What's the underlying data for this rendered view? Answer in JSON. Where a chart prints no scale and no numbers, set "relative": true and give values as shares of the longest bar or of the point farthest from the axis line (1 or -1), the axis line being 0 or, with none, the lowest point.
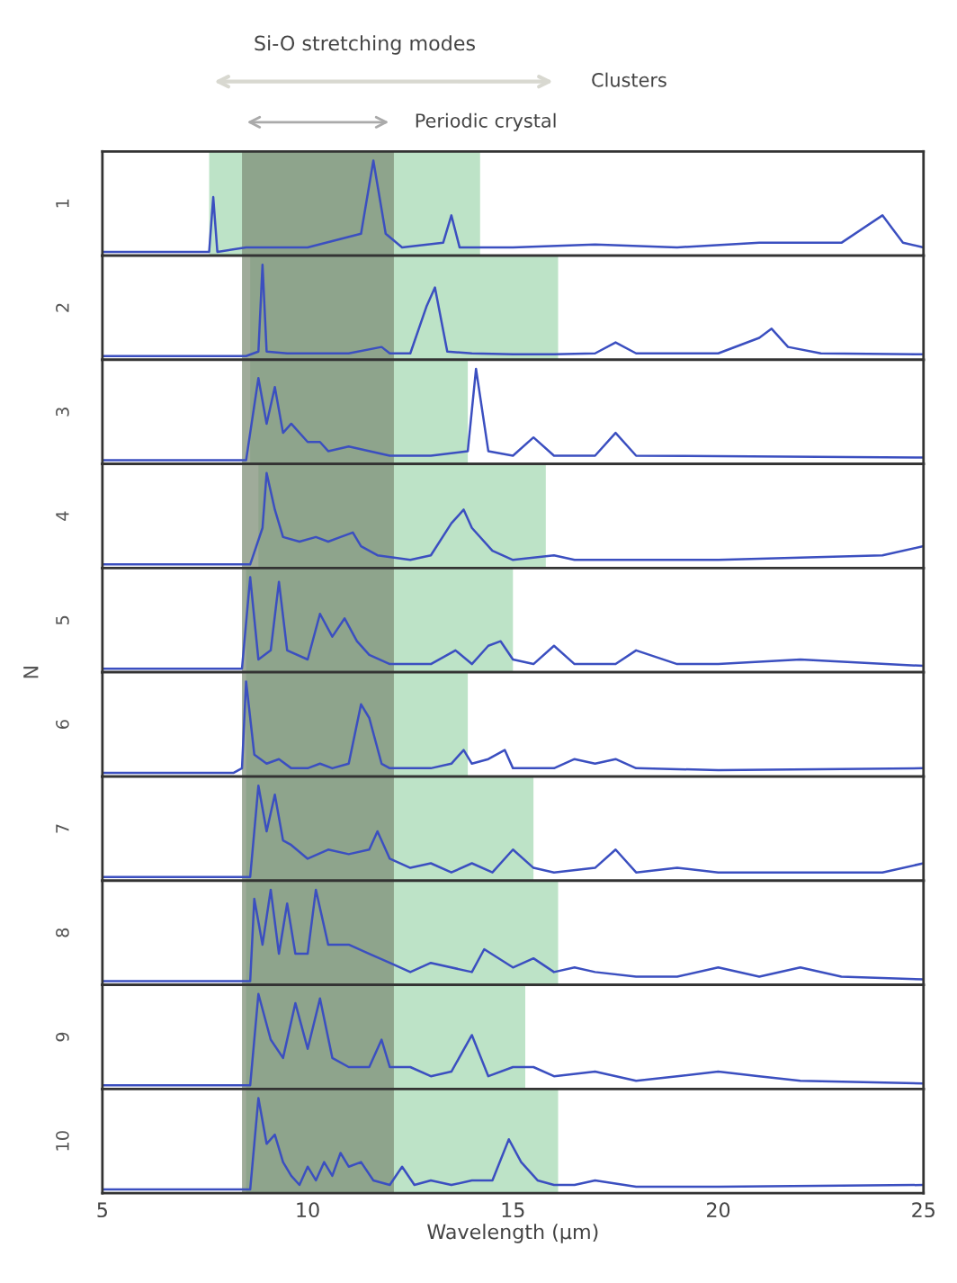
{
  "chart_data": [
    {
      "type": "line",
      "relative": true,
      "ylabel": "1",
      "xlim": [
        5,
        25
      ],
      "xticks": [
        5,
        10,
        15,
        20,
        25
      ],
      "tick_labels": false,
      "annotations": [
        "Si-O stretching modes",
        "Clusters",
        "Periodic crystal"
      ],
      "bands": [
        {
          "axis": "x",
          "from": 7.6,
          "to": 14.2,
          "color": "#a7d9b4"
        },
        {
          "axis": "x",
          "from": 8.4,
          "to": 12.1,
          "color": "#7f8f78"
        }
      ],
      "series": [
        {
          "color": "#3b4fc0",
          "x": [
            5,
            7.6,
            7.7,
            7.8,
            8.5,
            10,
            11.3,
            11.6,
            11.9,
            12.3,
            13.3,
            13.5,
            13.7,
            15,
            17,
            19,
            21,
            23,
            24,
            24.5,
            25
          ],
          "values": [
            0,
            0,
            0.6,
            0,
            0.05,
            0.05,
            0.2,
            1,
            0.2,
            0.05,
            0.1,
            0.4,
            0.05,
            0.05,
            0.08,
            0.05,
            0.1,
            0.1,
            0.4,
            0.1,
            0.05
          ]
        }
      ]
    },
    {
      "type": "line",
      "relative": true,
      "ylabel": "2",
      "xlim": [
        5,
        25
      ],
      "xticks": [
        5,
        10,
        15,
        20,
        25
      ],
      "tick_labels": false,
      "bands": [
        {
          "axis": "x",
          "from": 8.6,
          "to": 16.1,
          "color": "#a7d9b4"
        },
        {
          "axis": "x",
          "from": 8.4,
          "to": 12.1,
          "color": "#7f8f78"
        }
      ],
      "series": [
        {
          "color": "#3b4fc0",
          "x": [
            5,
            8.5,
            8.8,
            8.9,
            9.0,
            9.5,
            11,
            11.8,
            12,
            12.5,
            12.9,
            13.1,
            13.4,
            14,
            15,
            16,
            17,
            17.5,
            18,
            20,
            21,
            21.3,
            21.7,
            22.5,
            25
          ],
          "values": [
            0,
            0,
            0.05,
            1,
            0.05,
            0.03,
            0.03,
            0.1,
            0.03,
            0.03,
            0.55,
            0.75,
            0.05,
            0.03,
            0.02,
            0.02,
            0.03,
            0.15,
            0.03,
            0.03,
            0.2,
            0.3,
            0.1,
            0.03,
            0.02
          ]
        }
      ]
    },
    {
      "type": "line",
      "relative": true,
      "ylabel": "3",
      "xlim": [
        5,
        25
      ],
      "xticks": [
        5,
        10,
        15,
        20,
        25
      ],
      "tick_labels": false,
      "bands": [
        {
          "axis": "x",
          "from": 8.6,
          "to": 13.9,
          "color": "#a7d9b4"
        },
        {
          "axis": "x",
          "from": 8.4,
          "to": 12.1,
          "color": "#7f8f78"
        }
      ],
      "series": [
        {
          "color": "#3b4fc0",
          "x": [
            5,
            8.5,
            8.8,
            9.0,
            9.2,
            9.4,
            9.6,
            10,
            10.3,
            10.5,
            11,
            12,
            13,
            13.9,
            14.1,
            14.4,
            15,
            15.5,
            16,
            17,
            17.5,
            18,
            25
          ],
          "values": [
            0,
            0,
            0.9,
            0.4,
            0.8,
            0.3,
            0.4,
            0.2,
            0.2,
            0.1,
            0.15,
            0.05,
            0.05,
            0.1,
            1,
            0.1,
            0.05,
            0.25,
            0.05,
            0.05,
            0.3,
            0.05,
            0.03
          ]
        }
      ]
    },
    {
      "type": "line",
      "relative": true,
      "ylabel": "4",
      "xlim": [
        5,
        25
      ],
      "xticks": [
        5,
        10,
        15,
        20,
        25
      ],
      "tick_labels": false,
      "bands": [
        {
          "axis": "x",
          "from": 8.8,
          "to": 15.8,
          "color": "#a7d9b4"
        },
        {
          "axis": "x",
          "from": 8.4,
          "to": 12.1,
          "color": "#7f8f78"
        }
      ],
      "series": [
        {
          "color": "#3b4fc0",
          "x": [
            5,
            8.6,
            8.9,
            9.0,
            9.2,
            9.4,
            9.8,
            10.2,
            10.5,
            10.8,
            11.1,
            11.3,
            11.7,
            12.5,
            13,
            13.5,
            13.8,
            14,
            14.5,
            15,
            16,
            16.5,
            17,
            20,
            24,
            25
          ],
          "values": [
            0,
            0,
            0.4,
            1,
            0.6,
            0.3,
            0.25,
            0.3,
            0.25,
            0.3,
            0.35,
            0.2,
            0.1,
            0.05,
            0.1,
            0.45,
            0.6,
            0.4,
            0.15,
            0.05,
            0.1,
            0.05,
            0.05,
            0.05,
            0.1,
            0.2
          ]
        }
      ]
    },
    {
      "type": "line",
      "relative": true,
      "ylabel": "5",
      "xlim": [
        5,
        25
      ],
      "xticks": [
        5,
        10,
        15,
        20,
        25
      ],
      "tick_labels": false,
      "bands": [
        {
          "axis": "x",
          "from": 8.5,
          "to": 15.0,
          "color": "#a7d9b4"
        },
        {
          "axis": "x",
          "from": 8.4,
          "to": 12.1,
          "color": "#7f8f78"
        }
      ],
      "series": [
        {
          "color": "#3b4fc0",
          "x": [
            5,
            8.4,
            8.6,
            8.8,
            9.1,
            9.3,
            9.5,
            10,
            10.3,
            10.6,
            10.9,
            11.2,
            11.5,
            12,
            13,
            13.6,
            14,
            14.4,
            14.7,
            15,
            15.5,
            16,
            16.5,
            17.5,
            18,
            19,
            20,
            22,
            25
          ],
          "values": [
            0,
            0,
            1,
            0.1,
            0.2,
            0.95,
            0.2,
            0.1,
            0.6,
            0.35,
            0.55,
            0.3,
            0.15,
            0.05,
            0.05,
            0.2,
            0.05,
            0.25,
            0.3,
            0.1,
            0.05,
            0.25,
            0.05,
            0.05,
            0.2,
            0.05,
            0.05,
            0.1,
            0.03
          ]
        }
      ]
    },
    {
      "type": "line",
      "relative": true,
      "ylabel": "6",
      "xlim": [
        5,
        25
      ],
      "xticks": [
        5,
        10,
        15,
        20,
        25
      ],
      "tick_labels": false,
      "annotations": [
        "N"
      ],
      "bands": [
        {
          "axis": "x",
          "from": 8.5,
          "to": 13.9,
          "color": "#a7d9b4"
        },
        {
          "axis": "x",
          "from": 8.4,
          "to": 12.1,
          "color": "#7f8f78"
        }
      ],
      "series": [
        {
          "color": "#3b4fc0",
          "x": [
            5,
            8.2,
            8.4,
            8.5,
            8.7,
            9,
            9.3,
            9.6,
            10,
            10.3,
            10.6,
            11,
            11.3,
            11.5,
            11.8,
            12,
            12.5,
            13,
            13.5,
            13.8,
            14,
            14.4,
            14.8,
            15,
            16,
            16.5,
            17,
            17.5,
            18,
            20,
            25
          ],
          "values": [
            0,
            0,
            0.05,
            1,
            0.2,
            0.1,
            0.15,
            0.05,
            0.05,
            0.1,
            0.05,
            0.1,
            0.75,
            0.6,
            0.1,
            0.05,
            0.05,
            0.05,
            0.1,
            0.25,
            0.1,
            0.15,
            0.25,
            0.05,
            0.05,
            0.15,
            0.1,
            0.15,
            0.05,
            0.03,
            0.05
          ]
        }
      ]
    },
    {
      "type": "line",
      "relative": true,
      "ylabel": "7",
      "xlim": [
        5,
        25
      ],
      "xticks": [
        5,
        10,
        15,
        20,
        25
      ],
      "tick_labels": false,
      "bands": [
        {
          "axis": "x",
          "from": 8.5,
          "to": 15.5,
          "color": "#a7d9b4"
        },
        {
          "axis": "x",
          "from": 8.4,
          "to": 12.1,
          "color": "#7f8f78"
        }
      ],
      "series": [
        {
          "color": "#3b4fc0",
          "x": [
            5,
            8.6,
            8.8,
            9.0,
            9.2,
            9.4,
            9.6,
            10,
            10.5,
            11,
            11.5,
            11.7,
            12,
            12.5,
            13,
            13.5,
            14,
            14.5,
            15,
            15.5,
            16,
            17,
            17.5,
            18,
            19,
            20,
            22,
            24,
            25
          ],
          "values": [
            0,
            0,
            1,
            0.5,
            0.9,
            0.4,
            0.35,
            0.2,
            0.3,
            0.25,
            0.3,
            0.5,
            0.2,
            0.1,
            0.15,
            0.05,
            0.15,
            0.05,
            0.3,
            0.1,
            0.05,
            0.1,
            0.3,
            0.05,
            0.1,
            0.05,
            0.05,
            0.05,
            0.15
          ]
        }
      ]
    },
    {
      "type": "line",
      "relative": true,
      "ylabel": "8",
      "xlim": [
        5,
        25
      ],
      "xticks": [
        5,
        10,
        15,
        20,
        25
      ],
      "tick_labels": false,
      "bands": [
        {
          "axis": "x",
          "from": 8.5,
          "to": 16.1,
          "color": "#a7d9b4"
        },
        {
          "axis": "x",
          "from": 8.4,
          "to": 12.1,
          "color": "#7f8f78"
        }
      ],
      "series": [
        {
          "color": "#3b4fc0",
          "x": [
            5,
            8.6,
            8.7,
            8.9,
            9.1,
            9.3,
            9.5,
            9.7,
            10,
            10.2,
            10.5,
            11,
            11.5,
            12,
            12.5,
            13,
            14,
            14.3,
            15,
            15.5,
            16,
            16.5,
            17,
            18,
            19,
            20,
            21,
            22,
            23,
            25
          ],
          "values": [
            0,
            0,
            0.9,
            0.4,
            1,
            0.3,
            0.85,
            0.3,
            0.3,
            1,
            0.4,
            0.4,
            0.3,
            0.2,
            0.1,
            0.2,
            0.1,
            0.35,
            0.15,
            0.25,
            0.1,
            0.15,
            0.1,
            0.05,
            0.05,
            0.15,
            0.05,
            0.15,
            0.05,
            0.02
          ]
        }
      ]
    },
    {
      "type": "line",
      "relative": true,
      "ylabel": "9",
      "xlim": [
        5,
        25
      ],
      "xticks": [
        5,
        10,
        15,
        20,
        25
      ],
      "tick_labels": false,
      "bands": [
        {
          "axis": "x",
          "from": 8.5,
          "to": 15.3,
          "color": "#a7d9b4"
        },
        {
          "axis": "x",
          "from": 8.4,
          "to": 12.1,
          "color": "#7f8f78"
        }
      ],
      "series": [
        {
          "color": "#3b4fc0",
          "x": [
            5,
            8.6,
            8.8,
            9.1,
            9.4,
            9.7,
            10,
            10.3,
            10.6,
            11,
            11.5,
            11.8,
            12,
            12.5,
            13,
            13.5,
            14,
            14.4,
            15,
            15.5,
            16,
            17,
            18,
            19,
            20,
            21,
            22,
            25
          ],
          "values": [
            0,
            0,
            1,
            0.5,
            0.3,
            0.9,
            0.4,
            0.95,
            0.3,
            0.2,
            0.2,
            0.5,
            0.2,
            0.2,
            0.1,
            0.15,
            0.55,
            0.1,
            0.2,
            0.2,
            0.1,
            0.15,
            0.05,
            0.1,
            0.15,
            0.1,
            0.05,
            0.02
          ]
        }
      ]
    },
    {
      "type": "line",
      "relative": true,
      "ylabel": "10",
      "xlabel": "Wavelength (µm)",
      "xlim": [
        5,
        25
      ],
      "xticks": [
        5,
        10,
        15,
        20,
        25
      ],
      "tick_labels": "x",
      "bands": [
        {
          "axis": "x",
          "from": 8.5,
          "to": 16.1,
          "color": "#a7d9b4"
        },
        {
          "axis": "x",
          "from": 8.4,
          "to": 12.1,
          "color": "#7f8f78"
        }
      ],
      "series": [
        {
          "color": "#3b4fc0",
          "x": [
            5,
            8.6,
            8.8,
            9.0,
            9.2,
            9.4,
            9.6,
            9.8,
            10,
            10.2,
            10.4,
            10.6,
            10.8,
            11,
            11.3,
            11.6,
            12,
            12.3,
            12.6,
            13,
            13.5,
            14,
            14.5,
            14.9,
            15.2,
            15.6,
            16,
            16.5,
            17,
            18,
            20,
            25
          ],
          "values": [
            0,
            0,
            1,
            0.5,
            0.6,
            0.3,
            0.15,
            0.05,
            0.25,
            0.1,
            0.3,
            0.15,
            0.4,
            0.25,
            0.3,
            0.1,
            0.05,
            0.25,
            0.05,
            0.1,
            0.05,
            0.1,
            0.1,
            0.55,
            0.3,
            0.1,
            0.05,
            0.05,
            0.1,
            0.03,
            0.03,
            0.05
          ]
        }
      ]
    }
  ]
}
